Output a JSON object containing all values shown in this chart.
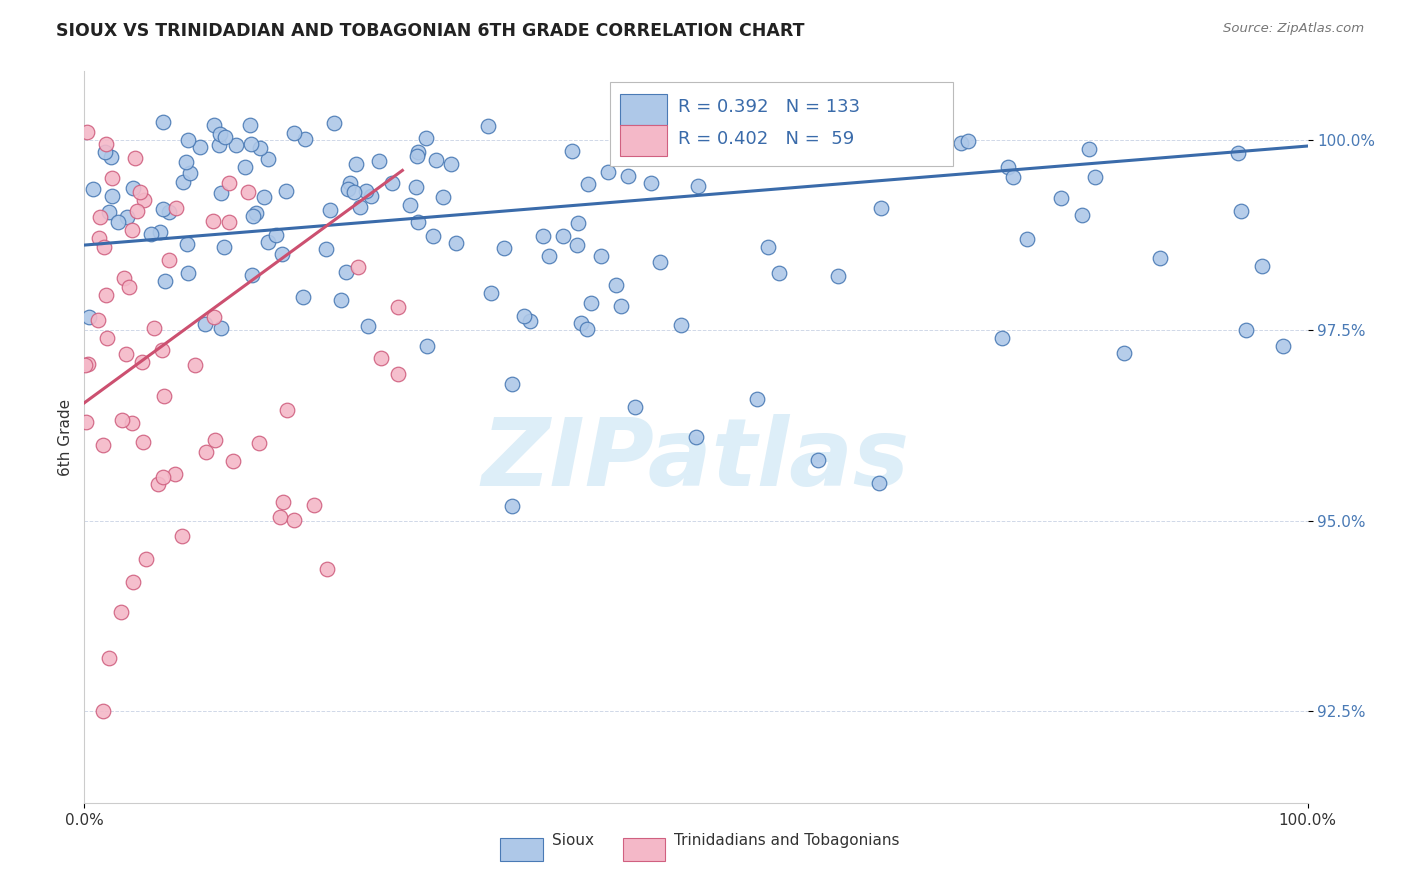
{
  "title": "SIOUX VS TRINIDADIAN AND TOBAGONIAN 6TH GRADE CORRELATION CHART",
  "source_text": "Source: ZipAtlas.com",
  "ylabel": "6th Grade",
  "y_tick_labels": [
    "92.5%",
    "95.0%",
    "97.5%",
    "100.0%"
  ],
  "y_tick_values": [
    92.5,
    95.0,
    97.5,
    100.0
  ],
  "x_min": 0.0,
  "x_max": 100.0,
  "y_min": 91.3,
  "y_max": 100.9,
  "legend_r_blue": "0.392",
  "legend_n_blue": "133",
  "legend_r_pink": "0.402",
  "legend_n_pink": " 59",
  "blue_color": "#aec8e8",
  "blue_edge_color": "#4a7ab5",
  "blue_line_color": "#3a6baa",
  "pink_color": "#f4b8c8",
  "pink_edge_color": "#d06080",
  "pink_line_color": "#cc5070",
  "background_color": "#ffffff",
  "watermark_text": "ZIPatlas",
  "watermark_color": "#ddeef8",
  "grid_color": "#d0d8e8",
  "tick_color": "#4a7ab5",
  "legend_blue_label": "Sioux",
  "legend_pink_label": "Trinidadians and Tobagonians",
  "blue_trend_x": [
    0.0,
    100.0
  ],
  "blue_trend_y": [
    98.62,
    99.92
  ],
  "pink_trend_x": [
    0.0,
    26.0
  ],
  "pink_trend_y": [
    96.55,
    99.6
  ]
}
